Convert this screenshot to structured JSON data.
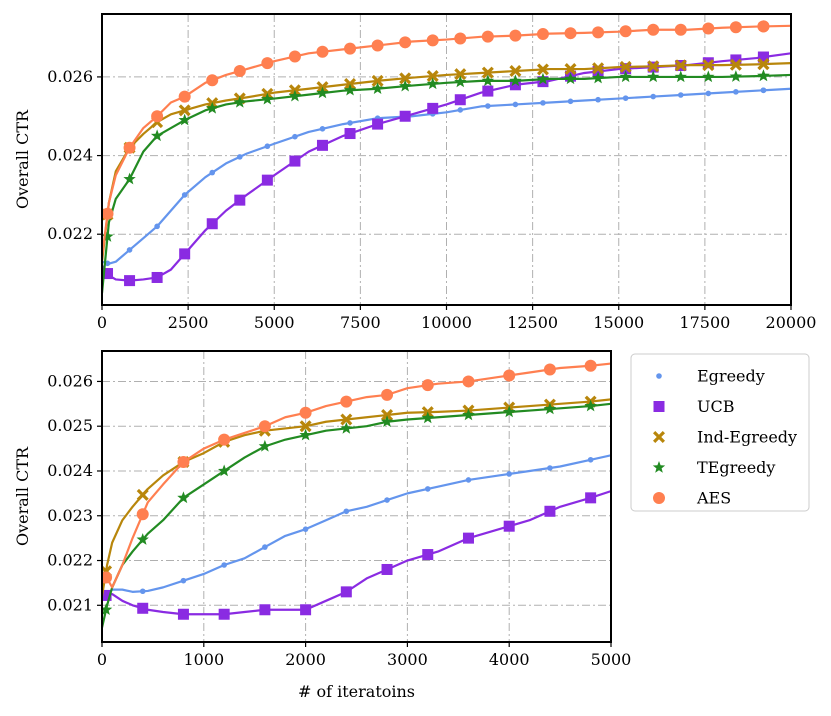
{
  "colors": {
    "Egreedy": "#6495ED",
    "UCB": "#8A2BE2",
    "Ind-Egreedy": "#B8860B",
    "TEgreedy": "#228B22",
    "AES": "#FF7F50"
  },
  "legend": [
    "Egreedy",
    "UCB",
    "Ind-Egreedy",
    "TEgreedy",
    "AES"
  ],
  "chart_data": [
    {
      "type": "line",
      "title": "",
      "xlabel": "",
      "ylabel": "Overall CTR",
      "xlim": [
        0,
        20000
      ],
      "ylim": [
        0.0202,
        0.0276
      ],
      "xticks": [
        0,
        2500,
        5000,
        7500,
        10000,
        12500,
        15000,
        17500,
        20000
      ],
      "yticks": [
        0.022,
        0.024,
        0.026
      ],
      "xtick_labels": [
        "0",
        "2500",
        "5000",
        "7500",
        "10000",
        "12500",
        "15000",
        "17500",
        "20000"
      ],
      "ytick_labels": [
        "0.022",
        "0.024",
        "0.026"
      ],
      "grid": true,
      "series": [
        {
          "name": "Egreedy",
          "marker": "dot",
          "x": [
            0,
            200,
            400,
            800,
            1200,
            1600,
            2000,
            2400,
            3000,
            3600,
            4200,
            5000,
            6000,
            7000,
            8000,
            9000,
            10000,
            11000,
            12000,
            13000,
            14000,
            15000,
            16000,
            17000,
            18000,
            19000,
            20000
          ],
          "y": [
            0.0213,
            0.02125,
            0.0213,
            0.0216,
            0.0219,
            0.0222,
            0.0226,
            0.023,
            0.02345,
            0.0238,
            0.02405,
            0.0243,
            0.0246,
            0.0248,
            0.02495,
            0.025,
            0.0251,
            0.02525,
            0.0253,
            0.02535,
            0.0254,
            0.02545,
            0.0255,
            0.02555,
            0.0256,
            0.02565,
            0.0257
          ]
        },
        {
          "name": "UCB",
          "marker": "square",
          "x": [
            0,
            200,
            400,
            800,
            1200,
            1600,
            2000,
            2400,
            3000,
            3600,
            4200,
            5000,
            6000,
            7000,
            8000,
            9000,
            10000,
            11000,
            12000,
            13000,
            14000,
            15000,
            16000,
            17000,
            18000,
            19000,
            20000
          ],
          "y": [
            0.0212,
            0.02095,
            0.02085,
            0.02082,
            0.02085,
            0.0209,
            0.0211,
            0.0215,
            0.0221,
            0.0226,
            0.023,
            0.0235,
            0.0241,
            0.0245,
            0.0248,
            0.02505,
            0.0253,
            0.0256,
            0.0258,
            0.0259,
            0.0261,
            0.0262,
            0.02625,
            0.0263,
            0.0264,
            0.02648,
            0.0266
          ]
        },
        {
          "name": "Ind-Egreedy",
          "marker": "x",
          "x": [
            0,
            200,
            400,
            800,
            1200,
            1600,
            2000,
            2400,
            3000,
            3600,
            4200,
            5000,
            6000,
            7000,
            8000,
            9000,
            10000,
            11000,
            12000,
            13000,
            14000,
            15000,
            16000,
            17000,
            18000,
            19000,
            20000
          ],
          "y": [
            0.0213,
            0.0228,
            0.0236,
            0.0242,
            0.02455,
            0.02485,
            0.02505,
            0.02515,
            0.0253,
            0.0254,
            0.02548,
            0.0256,
            0.0257,
            0.0258,
            0.0259,
            0.02598,
            0.02605,
            0.0261,
            0.02615,
            0.0262,
            0.0262,
            0.02625,
            0.02627,
            0.0263,
            0.0263,
            0.02632,
            0.02635
          ]
        },
        {
          "name": "TEgreedy",
          "marker": "star",
          "x": [
            0,
            200,
            400,
            800,
            1200,
            1600,
            2000,
            2400,
            3000,
            3600,
            4200,
            5000,
            6000,
            7000,
            8000,
            9000,
            10000,
            11000,
            12000,
            13000,
            14000,
            15000,
            16000,
            17000,
            18000,
            19000,
            20000
          ],
          "y": [
            0.0205,
            0.0223,
            0.0229,
            0.0234,
            0.0241,
            0.0245,
            0.0247,
            0.0249,
            0.02515,
            0.0253,
            0.02538,
            0.02545,
            0.02555,
            0.02565,
            0.0257,
            0.02578,
            0.02585,
            0.0259,
            0.0259,
            0.02595,
            0.02595,
            0.026,
            0.026,
            0.026,
            0.026,
            0.02602,
            0.02605
          ]
        },
        {
          "name": "AES",
          "marker": "circle",
          "x": [
            0,
            200,
            400,
            800,
            1200,
            1600,
            2000,
            2400,
            3000,
            3600,
            4200,
            5000,
            6000,
            7000,
            8000,
            9000,
            10000,
            11000,
            12000,
            13000,
            14000,
            15000,
            16000,
            17000,
            18000,
            19000,
            20000
          ],
          "y": [
            0.0214,
            0.0228,
            0.0235,
            0.0242,
            0.0247,
            0.025,
            0.02535,
            0.0255,
            0.02585,
            0.02605,
            0.0262,
            0.0264,
            0.0266,
            0.0267,
            0.0268,
            0.0269,
            0.02695,
            0.02702,
            0.02705,
            0.0271,
            0.02712,
            0.02715,
            0.0272,
            0.0272,
            0.02725,
            0.02728,
            0.0273
          ]
        }
      ]
    },
    {
      "type": "line",
      "title": "",
      "xlabel": "# of iteratoins",
      "ylabel": "Overall CTR",
      "xlim": [
        0,
        5000
      ],
      "ylim": [
        0.02018,
        0.02668
      ],
      "xticks": [
        0,
        1000,
        2000,
        3000,
        4000,
        5000
      ],
      "yticks": [
        0.021,
        0.022,
        0.023,
        0.024,
        0.025,
        0.026
      ],
      "xtick_labels": [
        "0",
        "1000",
        "2000",
        "3000",
        "4000",
        "5000"
      ],
      "ytick_labels": [
        "0.021",
        "0.022",
        "0.023",
        "0.024",
        "0.025",
        "0.026"
      ],
      "grid": true,
      "series": [
        {
          "name": "Egreedy",
          "marker": "dot",
          "x": [
            0,
            100,
            200,
            300,
            450,
            600,
            800,
            1000,
            1200,
            1400,
            1600,
            1800,
            2000,
            2200,
            2400,
            2600,
            2800,
            3000,
            3300,
            3600,
            3900,
            4200,
            4500,
            4800,
            5000
          ],
          "y": [
            0.02115,
            0.02135,
            0.02135,
            0.0213,
            0.02132,
            0.0214,
            0.02155,
            0.0217,
            0.0219,
            0.02205,
            0.0223,
            0.02255,
            0.0227,
            0.0229,
            0.0231,
            0.0232,
            0.02335,
            0.0235,
            0.02365,
            0.0238,
            0.0239,
            0.024,
            0.0241,
            0.02425,
            0.02435
          ]
        },
        {
          "name": "UCB",
          "marker": "square",
          "x": [
            0,
            100,
            200,
            300,
            450,
            600,
            800,
            1000,
            1200,
            1400,
            1600,
            1800,
            2000,
            2200,
            2400,
            2600,
            2800,
            3000,
            3300,
            3600,
            3900,
            4200,
            4500,
            4800,
            5000
          ],
          "y": [
            0.0212,
            0.02125,
            0.0211,
            0.021,
            0.0209,
            0.02085,
            0.0208,
            0.0208,
            0.0208,
            0.02085,
            0.0209,
            0.0209,
            0.0209,
            0.0211,
            0.0213,
            0.0216,
            0.0218,
            0.022,
            0.0222,
            0.0225,
            0.0227,
            0.0229,
            0.0232,
            0.0234,
            0.02355
          ]
        },
        {
          "name": "Ind-Egreedy",
          "marker": "x",
          "x": [
            0,
            50,
            100,
            200,
            300,
            450,
            600,
            800,
            1000,
            1200,
            1400,
            1600,
            1800,
            2000,
            2200,
            2400,
            2600,
            2800,
            3000,
            3300,
            3600,
            3900,
            4200,
            4500,
            4800,
            5000
          ],
          "y": [
            0.0212,
            0.0219,
            0.0224,
            0.0229,
            0.0232,
            0.0236,
            0.0239,
            0.0242,
            0.0244,
            0.02465,
            0.0248,
            0.0249,
            0.02495,
            0.025,
            0.0251,
            0.02515,
            0.0252,
            0.02525,
            0.0253,
            0.02532,
            0.02535,
            0.0254,
            0.02545,
            0.0255,
            0.02555,
            0.0256
          ]
        },
        {
          "name": "TEgreedy",
          "marker": "star",
          "x": [
            0,
            50,
            100,
            200,
            300,
            450,
            600,
            800,
            1000,
            1200,
            1400,
            1600,
            1800,
            2000,
            2200,
            2400,
            2600,
            2800,
            3000,
            3300,
            3600,
            3900,
            4200,
            4500,
            4800,
            5000
          ],
          "y": [
            0.0205,
            0.021,
            0.0214,
            0.0219,
            0.0222,
            0.0226,
            0.0229,
            0.0234,
            0.0237,
            0.024,
            0.0243,
            0.02455,
            0.0247,
            0.0248,
            0.0249,
            0.02495,
            0.025,
            0.0251,
            0.02515,
            0.0252,
            0.02525,
            0.0253,
            0.02535,
            0.0254,
            0.02545,
            0.0255
          ]
        },
        {
          "name": "AES",
          "marker": "circle",
          "x": [
            0,
            50,
            100,
            200,
            300,
            450,
            600,
            800,
            1000,
            1200,
            1400,
            1600,
            1800,
            2000,
            2200,
            2400,
            2600,
            2800,
            3000,
            3300,
            3600,
            3900,
            4200,
            4500,
            4800,
            5000
          ],
          "y": [
            0.0217,
            0.0216,
            0.0214,
            0.0219,
            0.0225,
            0.0233,
            0.0237,
            0.0242,
            0.0245,
            0.0247,
            0.02485,
            0.025,
            0.0252,
            0.0253,
            0.02545,
            0.02555,
            0.02565,
            0.0257,
            0.02585,
            0.02595,
            0.026,
            0.0261,
            0.0262,
            0.0263,
            0.02635,
            0.0264
          ]
        }
      ]
    }
  ]
}
